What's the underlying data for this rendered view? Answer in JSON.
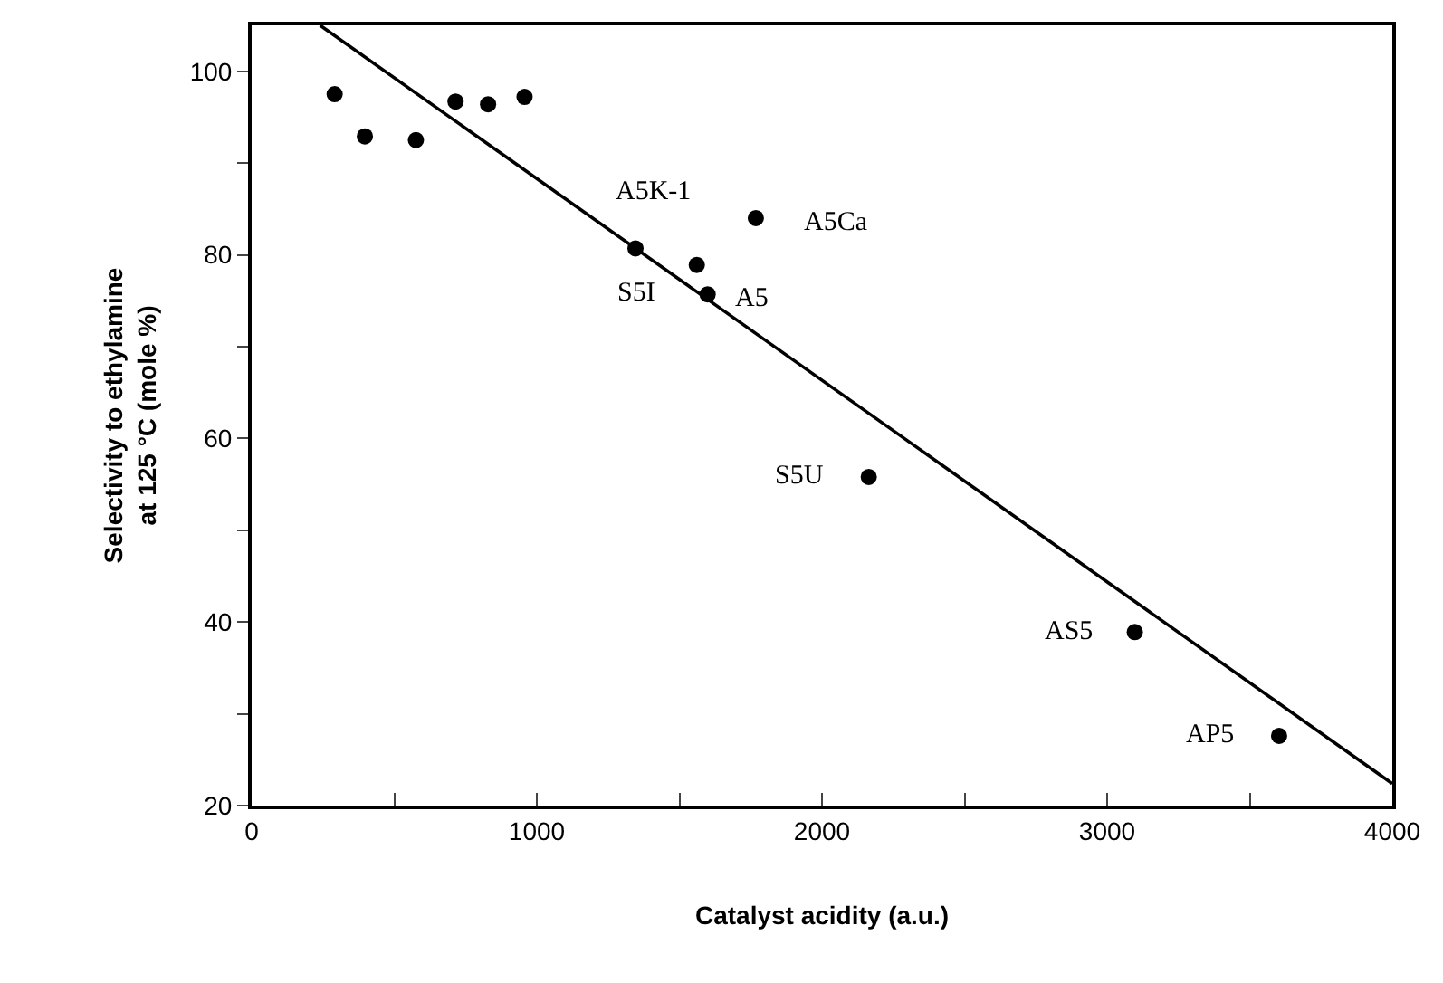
{
  "chart_data": {
    "type": "scatter",
    "xlabel": "Catalyst acidity (a.u.)",
    "ylabel": "Selectivity to ethylamine\nat 125 °C (mole %)",
    "x": [
      291,
      397,
      576,
      715,
      829,
      957,
      1346,
      1561,
      1599,
      1768,
      2164,
      3097,
      3603
    ],
    "series": [
      {
        "color": "#000000",
        "marker": "circle",
        "values": [
          97.5,
          92.9,
          92.5,
          96.7,
          96.4,
          97.2,
          80.7,
          78.9,
          75.7,
          84.0,
          55.8,
          38.9,
          27.6
        ]
      },
      {
        "type": "line",
        "color": "#000000",
        "line_style": "solid",
        "x": [
          240,
          4000
        ],
        "values": [
          105.0,
          22.4
        ]
      }
    ],
    "annotations": [
      {
        "text": "S5I",
        "x": 1346,
        "y": 80.7
      },
      {
        "text": "A5K-1",
        "x": 1561,
        "y": 78.9
      },
      {
        "text": "A5",
        "x": 1599,
        "y": 75.7
      },
      {
        "text": "A5Ca",
        "x": 1768,
        "y": 84.0
      },
      {
        "text": "S5U",
        "x": 2164,
        "y": 55.8
      },
      {
        "text": "AS5",
        "x": 3097,
        "y": 38.9
      },
      {
        "text": "AP5",
        "x": 3603,
        "y": 27.6
      }
    ],
    "xlim": [
      0,
      4000
    ],
    "xticks": [
      0,
      {
        "value": 500,
        "label": null
      },
      1000,
      {
        "value": 1500,
        "label": null
      },
      2000,
      {
        "value": 2500,
        "label": null
      },
      3000,
      {
        "value": 3500,
        "label": null
      },
      4000
    ],
    "ylim": [
      20,
      105
    ],
    "yticks": [
      20,
      {
        "value": 30,
        "label": null
      },
      40,
      {
        "value": 50,
        "label": null
      },
      60,
      {
        "value": 70,
        "label": null
      },
      80,
      {
        "value": 90,
        "label": null
      },
      100
    ]
  }
}
